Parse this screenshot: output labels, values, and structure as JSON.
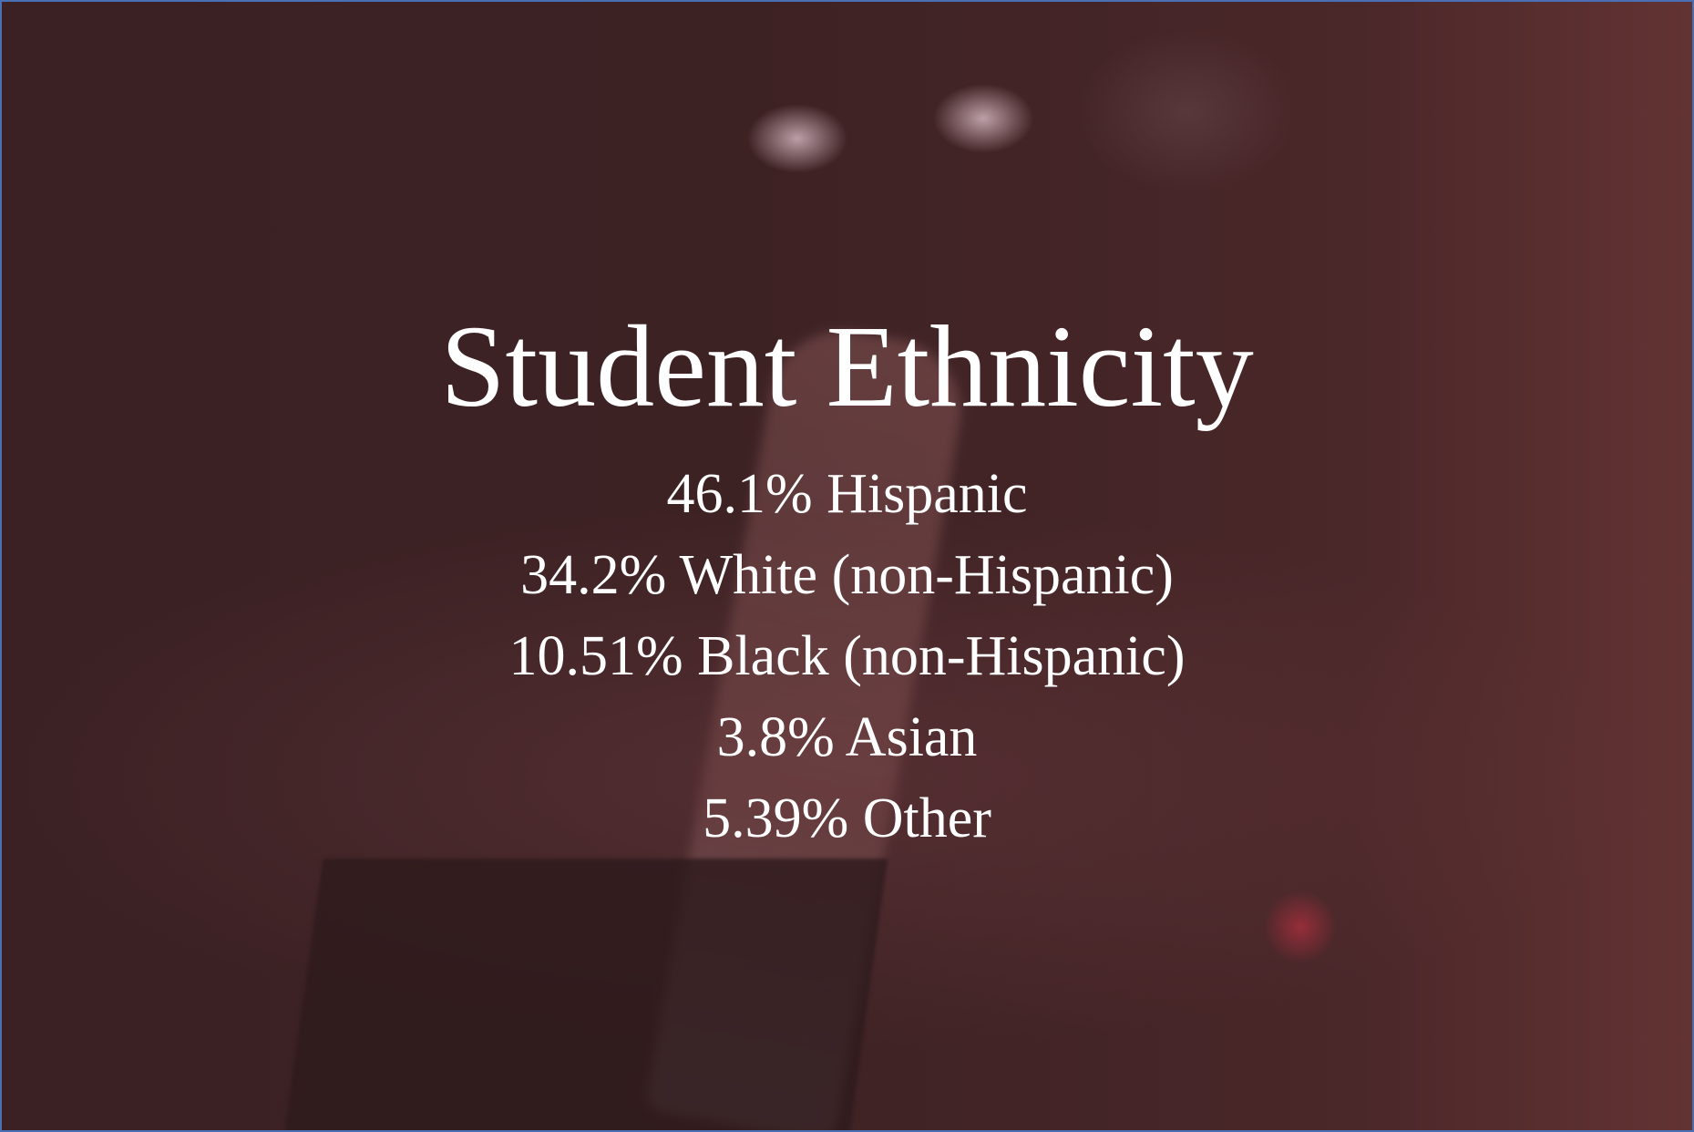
{
  "slide": {
    "title": "Student Ethnicity",
    "items": [
      "46.1% Hispanic",
      "34.2% White (non-Hispanic)",
      "10.51% Black (non-Hispanic)",
      "3.8% Asian",
      "5.39% Other"
    ],
    "colors": {
      "background": "#3d2224",
      "text": "#ffffff",
      "border": "#4a6fb5"
    }
  }
}
